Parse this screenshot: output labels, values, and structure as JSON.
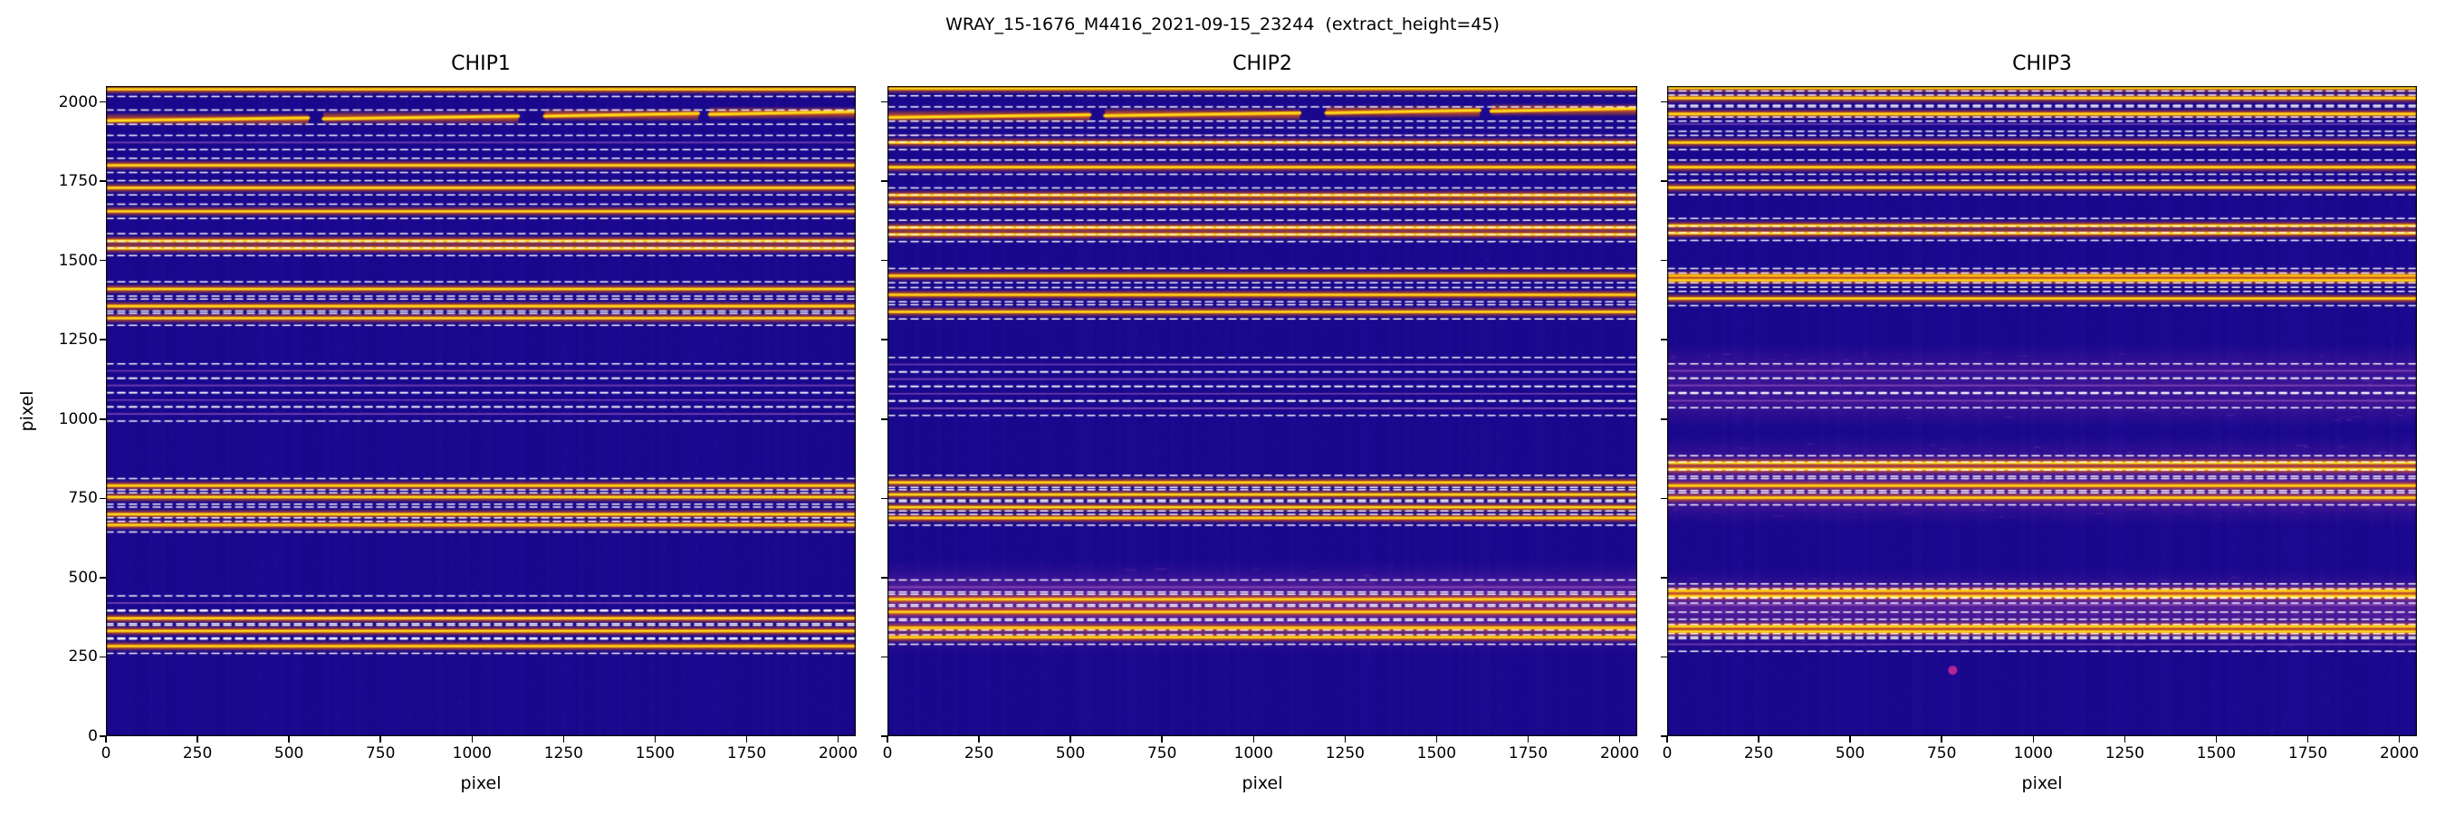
{
  "figure": {
    "title": "WRAY_15-1676_M4416_2021-09-15_23244  (extract_height=45)"
  },
  "chart_data": {
    "type": "heatmap",
    "title": "WRAY_15-1676_M4416_2021-09-15_23244  (extract_height=45)",
    "xlabel": "pixel",
    "ylabel": "pixel",
    "xlim": [
      0,
      2048
    ],
    "ylim": [
      0,
      2050
    ],
    "xticks": [
      0,
      250,
      500,
      750,
      1000,
      1250,
      1500,
      1750,
      2000
    ],
    "yticks": [
      0,
      250,
      500,
      750,
      1000,
      1250,
      1500,
      1750,
      2000
    ],
    "extract_height": 45,
    "extract_half_height": 22.5,
    "legend": "none",
    "grid": false,
    "colors": {
      "background": "#19078c",
      "banding": "rgba(120,80,255,",
      "trace_glow": "rgba(225,95,15,",
      "trace": "#fb9b06",
      "trace_core": "#f7e225",
      "faint_trace": "rgba(190,110,210,0.55)",
      "haze": "rgba(165,60,170,",
      "dashed": "rgba(255,255,255,0.95)",
      "frame": "#000000",
      "spot": "rgba(200,40,150,0.9)"
    },
    "panels": [
      {
        "label": "CHIP1",
        "seed": 11,
        "orders": [
          {
            "y": 2040,
            "intensity": "bright"
          },
          {
            "y": 1952,
            "intensity": "bright",
            "wavy": true
          },
          {
            "y": 1872,
            "intensity": "faint"
          },
          {
            "y": 1800,
            "intensity": "bright"
          },
          {
            "y": 1729,
            "intensity": "bright"
          },
          {
            "y": 1655,
            "intensity": "bright"
          },
          {
            "y": 1562,
            "intensity": "bright"
          },
          {
            "y": 1538,
            "intensity": "bright"
          },
          {
            "y": 1410,
            "intensity": "bright"
          },
          {
            "y": 1356,
            "intensity": "bright"
          },
          {
            "y": 1318,
            "intensity": "bright"
          },
          {
            "y": 1152,
            "intensity": "faint"
          },
          {
            "y": 1106,
            "intensity": "faint"
          },
          {
            "y": 1060,
            "intensity": "faint"
          },
          {
            "y": 1016,
            "intensity": "faint"
          },
          {
            "y": 790,
            "intensity": "bright"
          },
          {
            "y": 754,
            "intensity": "bright"
          },
          {
            "y": 700,
            "intensity": "bright"
          },
          {
            "y": 666,
            "intensity": "bright"
          },
          {
            "y": 420,
            "intensity": "faint"
          },
          {
            "y": 372,
            "intensity": "bright"
          },
          {
            "y": 332,
            "intensity": "bright"
          },
          {
            "y": 284,
            "intensity": "bright"
          }
        ],
        "spots": []
      },
      {
        "label": "CHIP2",
        "seed": 22,
        "orders": [
          {
            "y": 2042,
            "intensity": "bright"
          },
          {
            "y": 1962,
            "intensity": "bright",
            "wavy": true
          },
          {
            "y": 1896,
            "intensity": "faint"
          },
          {
            "y": 1872,
            "intensity": "bright"
          },
          {
            "y": 1794,
            "intensity": "bright"
          },
          {
            "y": 1706,
            "intensity": "bright"
          },
          {
            "y": 1684,
            "intensity": "bright"
          },
          {
            "y": 1604,
            "intensity": "bright"
          },
          {
            "y": 1582,
            "intensity": "bright"
          },
          {
            "y": 1452,
            "intensity": "bright"
          },
          {
            "y": 1392,
            "intensity": "bright"
          },
          {
            "y": 1338,
            "intensity": "bright"
          },
          {
            "y": 1172,
            "intensity": "faint"
          },
          {
            "y": 1126,
            "intensity": "faint"
          },
          {
            "y": 1080,
            "intensity": "faint"
          },
          {
            "y": 1034,
            "intensity": "faint"
          },
          {
            "y": 800,
            "intensity": "bright"
          },
          {
            "y": 762,
            "intensity": "bright"
          },
          {
            "y": 722,
            "intensity": "bright"
          },
          {
            "y": 688,
            "intensity": "bright"
          },
          {
            "y": 470,
            "intensity": "faint",
            "haze": true
          },
          {
            "y": 432,
            "intensity": "bright",
            "haze": true
          },
          {
            "y": 392,
            "intensity": "bright",
            "haze": true
          },
          {
            "y": 342,
            "intensity": "bright",
            "haze": true
          },
          {
            "y": 312,
            "intensity": "bright"
          }
        ],
        "spots": []
      },
      {
        "label": "CHIP3",
        "seed": 33,
        "orders": [
          {
            "y": 2044,
            "intensity": "bright"
          },
          {
            "y": 2012,
            "intensity": "bright"
          },
          {
            "y": 1962,
            "intensity": "bright"
          },
          {
            "y": 1930,
            "intensity": "faint"
          },
          {
            "y": 1872,
            "intensity": "bright"
          },
          {
            "y": 1794,
            "intensity": "bright"
          },
          {
            "y": 1730,
            "intensity": "bright"
          },
          {
            "y": 1610,
            "intensity": "bright"
          },
          {
            "y": 1586,
            "intensity": "bright"
          },
          {
            "y": 1452,
            "intensity": "bright"
          },
          {
            "y": 1438,
            "intensity": "bright"
          },
          {
            "y": 1380,
            "intensity": "bright"
          },
          {
            "y": 1152,
            "intensity": "faint",
            "haze": true
          },
          {
            "y": 1106,
            "intensity": "faint"
          },
          {
            "y": 1058,
            "intensity": "faint",
            "haze": true
          },
          {
            "y": 862,
            "intensity": "bright",
            "haze": true
          },
          {
            "y": 842,
            "intensity": "bright"
          },
          {
            "y": 790,
            "intensity": "bright",
            "haze": true
          },
          {
            "y": 752,
            "intensity": "bright",
            "haze": true
          },
          {
            "y": 458,
            "intensity": "bright"
          },
          {
            "y": 442,
            "intensity": "bright",
            "haze": true
          },
          {
            "y": 414,
            "intensity": "faint",
            "haze": true
          },
          {
            "y": 346,
            "intensity": "bright",
            "haze": true
          },
          {
            "y": 330,
            "intensity": "bright"
          },
          {
            "y": 290,
            "intensity": "faint"
          }
        ],
        "spots": [
          {
            "x": 780,
            "y": 208
          }
        ]
      }
    ]
  }
}
